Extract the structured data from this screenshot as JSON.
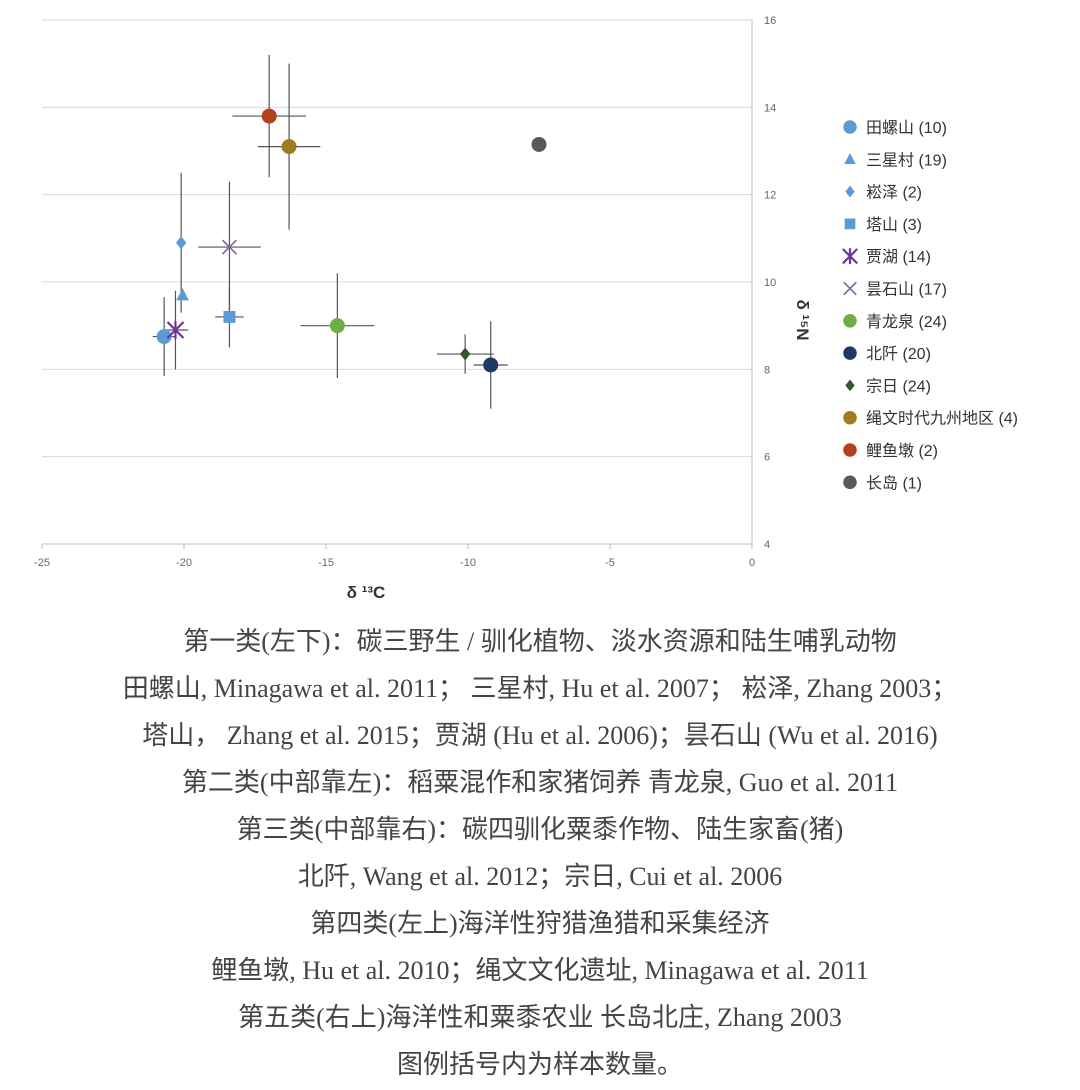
{
  "chart_data": {
    "type": "scatter",
    "xlabel": "δ ¹³C",
    "ylabel": "δ ¹⁵N",
    "xlim": [
      -25,
      0
    ],
    "ylim": [
      4,
      16
    ],
    "x_ticks": [
      "-25",
      "-20",
      "-15",
      "-10",
      "-5",
      "0"
    ],
    "y_ticks": [
      "4",
      "6",
      "8",
      "10",
      "12",
      "14",
      "16"
    ],
    "y_axis_position": "right",
    "grid": "horizontal",
    "legend_position": "right",
    "series": [
      {
        "name": "田螺山 (10)",
        "marker": "circle",
        "color": "#5b9bd5",
        "x": -20.7,
        "y": 8.75,
        "x_err": 0.4,
        "y_err": 0.9
      },
      {
        "name": "三星村 (19)",
        "marker": "triangle",
        "color": "#5b9bd5",
        "x": -20.05,
        "y": 9.7,
        "x_err": 0.0,
        "y_err": 0.0
      },
      {
        "name": "崧泽 (2)",
        "marker": "diamond",
        "color": "#5b9bd5",
        "x": -20.1,
        "y": 10.9,
        "x_err": 0.0,
        "y_err": 1.6
      },
      {
        "name": "塔山 (3)",
        "marker": "square",
        "color": "#5b9bd5",
        "x": -18.4,
        "y": 9.2,
        "x_err": 0.5,
        "y_err": 0.7
      },
      {
        "name": "贾湖 (14)",
        "marker": "star",
        "color": "#7030a0",
        "x": -20.3,
        "y": 8.9,
        "x_err": 0.45,
        "y_err": 0.9
      },
      {
        "name": "昙石山 (17)",
        "marker": "x",
        "color": "#8064a2",
        "x": -18.4,
        "y": 10.8,
        "x_err": 1.1,
        "y_err": 1.5
      },
      {
        "name": "青龙泉 (24)",
        "marker": "circle",
        "color": "#70ad47",
        "x": -14.6,
        "y": 9.0,
        "x_err": 1.3,
        "y_err": 1.2
      },
      {
        "name": "北阡 (20)",
        "marker": "circle",
        "color": "#203864",
        "x": -9.2,
        "y": 8.1,
        "x_err": 0.6,
        "y_err": 1.0
      },
      {
        "name": "宗日 (24)",
        "marker": "diamond",
        "color": "#375623",
        "x": -10.1,
        "y": 8.35,
        "x_err": 1.0,
        "y_err": 0.45
      },
      {
        "name": "绳文时代九州地区 (4)",
        "marker": "circle",
        "color": "#a07c1c",
        "x": -16.3,
        "y": 13.1,
        "x_err": 1.1,
        "y_err": 1.9
      },
      {
        "name": "鲤鱼墩 (2)",
        "marker": "circle",
        "color": "#b3401f",
        "x": -17.0,
        "y": 13.8,
        "x_err": 1.3,
        "y_err": 1.4
      },
      {
        "name": "长岛 (1)",
        "marker": "circle",
        "color": "#595959",
        "x": -7.5,
        "y": 13.15,
        "x_err": 0.0,
        "y_err": 0.0
      }
    ]
  },
  "caption": {
    "lines": [
      "第一类(左下)：碳三野生 / 驯化植物、淡水资源和陆生哺乳动物",
      "田螺山, Minagawa et al. 2011；  三星村, Hu et al. 2007；  崧泽, Zhang 2003；",
      "塔山，  Zhang et al. 2015；贾湖 (Hu et al. 2006)；昙石山 (Wu et al. 2016)",
      "第二类(中部靠左)：稻粟混作和家猪饲养   青龙泉, Guo et al. 2011",
      "第三类(中部靠右)：碳四驯化粟黍作物、陆生家畜(猪)",
      "北阡, Wang et al. 2012；宗日, Cui et al. 2006",
      "第四类(左上)海洋性狩猎渔猎和采集经济",
      "鲤鱼墩, Hu et al. 2010；绳文文化遗址, Minagawa et al. 2011",
      "第五类(右上)海洋性和粟黍农业   长岛北庄, Zhang 2003",
      "图例括号内为样本数量。"
    ]
  }
}
